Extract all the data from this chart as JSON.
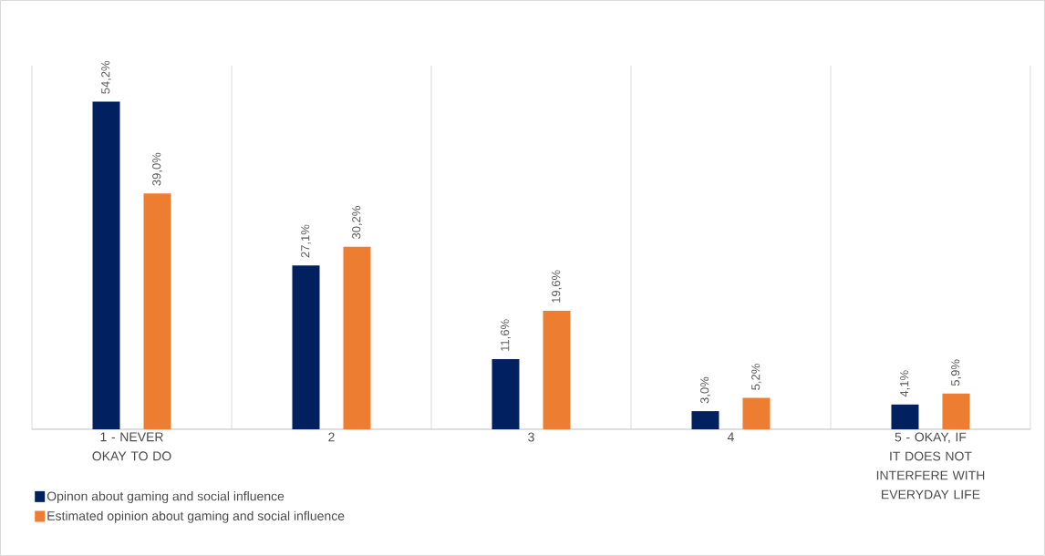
{
  "chart_data": {
    "type": "bar",
    "categories": [
      "1 - NEVER OKAY TO DO",
      "2",
      "3",
      "4",
      "5 - OKAY, IF IT DOES NOT INTERFERE WITH EVERYDAY LIFE"
    ],
    "series": [
      {
        "name": "Opinon about gaming and social influence",
        "color": "#002060",
        "values": [
          54.2,
          27.1,
          11.6,
          3.0,
          4.1
        ],
        "value_labels": [
          "54,2%",
          "27,1%",
          "11,6%",
          "3,0%",
          "4,1%"
        ]
      },
      {
        "name": "Estimated opinion about gaming and social influence",
        "color": "#ed7d31",
        "values": [
          39.0,
          30.2,
          19.6,
          5.2,
          5.9
        ],
        "value_labels": [
          "39,0%",
          "30,2%",
          "19,6%",
          "5,2%",
          "5,9%"
        ]
      }
    ],
    "grid": "x",
    "legend": "bottom left"
  }
}
